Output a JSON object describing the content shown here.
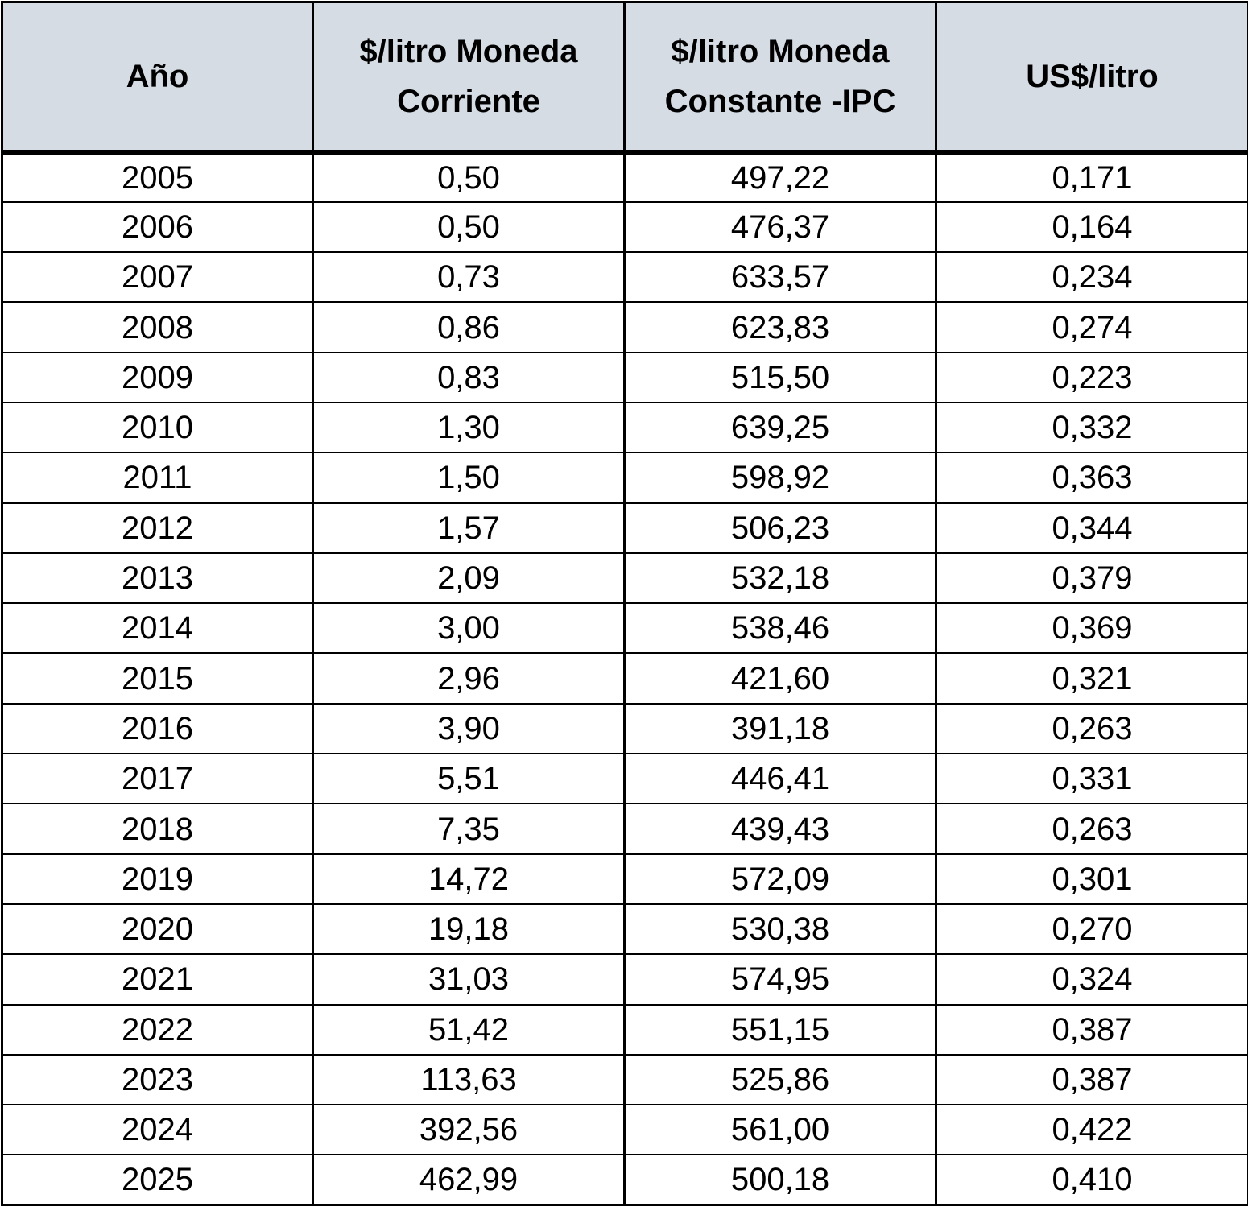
{
  "chart_data": {
    "type": "table",
    "columns": [
      "Año",
      "$/litro Moneda Corriente",
      "$/litro Moneda Constante -IPC",
      "US$/litro"
    ],
    "header_lines": [
      [
        "Año"
      ],
      [
        "$/litro Moneda",
        "Corriente"
      ],
      [
        "$/litro Moneda",
        "Constante -IPC"
      ],
      [
        "US$/litro"
      ]
    ],
    "rows": [
      [
        "2005",
        "0,50",
        "497,22",
        "0,171"
      ],
      [
        "2006",
        "0,50",
        "476,37",
        "0,164"
      ],
      [
        "2007",
        "0,73",
        "633,57",
        "0,234"
      ],
      [
        "2008",
        "0,86",
        "623,83",
        "0,274"
      ],
      [
        "2009",
        "0,83",
        "515,50",
        "0,223"
      ],
      [
        "2010",
        "1,30",
        "639,25",
        "0,332"
      ],
      [
        "2011",
        "1,50",
        "598,92",
        "0,363"
      ],
      [
        "2012",
        "1,57",
        "506,23",
        "0,344"
      ],
      [
        "2013",
        "2,09",
        "532,18",
        "0,379"
      ],
      [
        "2014",
        "3,00",
        "538,46",
        "0,369"
      ],
      [
        "2015",
        "2,96",
        "421,60",
        "0,321"
      ],
      [
        "2016",
        "3,90",
        "391,18",
        "0,263"
      ],
      [
        "2017",
        "5,51",
        "446,41",
        "0,331"
      ],
      [
        "2018",
        "7,35",
        "439,43",
        "0,263"
      ],
      [
        "2019",
        "14,72",
        "572,09",
        "0,301"
      ],
      [
        "2020",
        "19,18",
        "530,38",
        "0,270"
      ],
      [
        "2021",
        "31,03",
        "574,95",
        "0,324"
      ],
      [
        "2022",
        "51,42",
        "551,15",
        "0,387"
      ],
      [
        "2023",
        "113,63",
        "525,86",
        "0,387"
      ],
      [
        "2024",
        "392,56",
        "561,00",
        "0,422"
      ],
      [
        "2025",
        "462,99",
        "500,18",
        "0,410"
      ]
    ],
    "header_background": "#d6dce4",
    "border_color": "#000000"
  }
}
